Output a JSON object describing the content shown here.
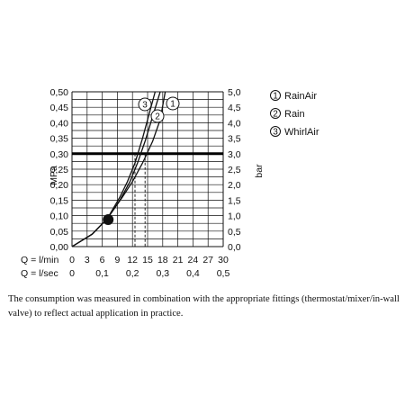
{
  "chart_data": {
    "type": "line",
    "left_axis": {
      "label": "MPa",
      "ticks": [
        "0,00",
        "0,05",
        "0,10",
        "0,15",
        "0,20",
        "0,25",
        "0,30",
        "0,35",
        "0,40",
        "0,45",
        "0,50"
      ],
      "ylim": [
        0,
        0.5
      ]
    },
    "right_axis": {
      "label": "bar",
      "ticks": [
        "0,0",
        "0,5",
        "1,0",
        "1,5",
        "2,0",
        "2,5",
        "3,0",
        "3,5",
        "4,0",
        "4,5",
        "5,0"
      ],
      "ylim": [
        0,
        5
      ]
    },
    "x_axis_lmin": {
      "label": "Q = l/min",
      "ticks": [
        "0",
        "3",
        "6",
        "9",
        "12",
        "15",
        "18",
        "21",
        "24",
        "27",
        "30"
      ],
      "xlim": [
        0,
        30
      ]
    },
    "x_axis_lsec": {
      "label": "Q = l/sec",
      "ticks": [
        "0",
        "0,1",
        "0,2",
        "0,3",
        "0,4",
        "0,5"
      ]
    },
    "grid": true,
    "reference_pressure_mpa": 0.3,
    "operating_point": {
      "flow_lmin": 7,
      "pressure_mpa": 0.09
    },
    "series": [
      {
        "name": "RainAir",
        "marker": "1",
        "x": [
          0,
          4,
          7,
          10,
          12,
          14,
          16,
          17.5,
          18.5
        ],
        "y": [
          0,
          0.04,
          0.09,
          0.16,
          0.21,
          0.27,
          0.34,
          0.41,
          0.5
        ]
      },
      {
        "name": "Rain",
        "marker": "2",
        "x": [
          0,
          4,
          7,
          9.5,
          11.5,
          13,
          14.5,
          16,
          17.5
        ],
        "y": [
          0,
          0.04,
          0.09,
          0.15,
          0.21,
          0.27,
          0.34,
          0.42,
          0.5
        ]
      },
      {
        "name": "WhirlAir",
        "marker": "3",
        "x": [
          0,
          4,
          7,
          9.5,
          11,
          12.5,
          14,
          15.5,
          16.5
        ],
        "y": [
          0,
          0.04,
          0.09,
          0.16,
          0.21,
          0.27,
          0.35,
          0.44,
          0.5
        ]
      }
    ],
    "drop_lines_lmin": [
      12.5,
      14.5
    ]
  },
  "legend": [
    {
      "marker": "1",
      "label": "RainAir"
    },
    {
      "marker": "2",
      "label": "Rain"
    },
    {
      "marker": "3",
      "label": "WhirlAir"
    }
  ],
  "caption": "The consumption was measured in combination with the appropriate fittings (thermostat/mixer/in-wall valve) to reflect actual application in practice."
}
